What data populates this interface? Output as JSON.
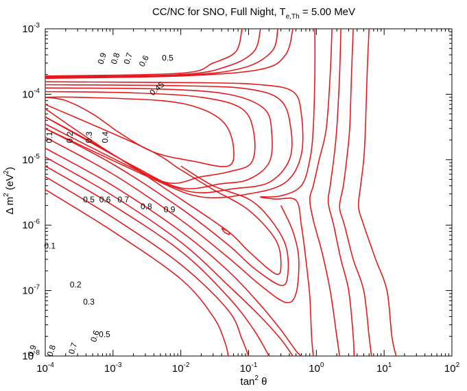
{
  "chart_data": {
    "type": "contour",
    "title_main": "CC/NC for SNO, Full Night, T",
    "title_sub": "e,Th",
    "title_value": " = 5.00 MeV",
    "xlabel_main": "tan",
    "xlabel_exp": "2",
    "xlabel_var": " θ",
    "ylabel_main": "Δ m",
    "ylabel_exp": "2",
    "ylabel_unit": " (eV",
    "ylabel_unit_exp": "2",
    "ylabel_close": ")",
    "x_scale": "log",
    "y_scale": "log",
    "xlim": [
      0.0001,
      100
    ],
    "ylim": [
      1e-08,
      0.001
    ],
    "x_ticks": [
      {
        "base": "10",
        "exp": "-4"
      },
      {
        "base": "10",
        "exp": "-3"
      },
      {
        "base": "10",
        "exp": "-2"
      },
      {
        "base": "10",
        "exp": "-1"
      },
      {
        "base": "10",
        "exp": "0"
      },
      {
        "base": "10",
        "exp": "1"
      },
      {
        "base": "10",
        "exp": "2"
      }
    ],
    "y_ticks": [
      {
        "base": "10",
        "exp": "-8"
      },
      {
        "base": "10",
        "exp": "-7"
      },
      {
        "base": "10",
        "exp": "-6"
      },
      {
        "base": "10",
        "exp": "-5"
      },
      {
        "base": "10",
        "exp": "-4"
      },
      {
        "base": "10",
        "exp": "-3"
      }
    ],
    "line_color": "#e3191c",
    "contour_levels": [
      0.1,
      0.2,
      0.3,
      0.4,
      0.45,
      0.5,
      0.6,
      0.7,
      0.8,
      0.9
    ],
    "contour_labels": [
      {
        "text": "0.9",
        "x": 0.0007,
        "y": 0.00035,
        "angle": -72
      },
      {
        "text": "0.8",
        "x": 0.0011,
        "y": 0.00035,
        "angle": -72
      },
      {
        "text": "0.7",
        "x": 0.0017,
        "y": 0.00035,
        "angle": -72
      },
      {
        "text": "0.6",
        "x": 0.0029,
        "y": 0.00032,
        "angle": -62
      },
      {
        "text": "0.5",
        "x": 0.0064,
        "y": 0.00035,
        "angle": 0
      },
      {
        "text": "0.45",
        "x": 0.0045,
        "y": 0.00012,
        "angle": -42
      },
      {
        "text": "0.1",
        "x": 0.000117,
        "y": 2.2e-05,
        "angle": -88
      },
      {
        "text": "0.2",
        "x": 0.000235,
        "y": 2.2e-05,
        "angle": -88
      },
      {
        "text": "0.3",
        "x": 0.00045,
        "y": 2.2e-05,
        "angle": -88
      },
      {
        "text": "0.4",
        "x": 0.00078,
        "y": 2.2e-05,
        "angle": -88
      },
      {
        "text": "0.5",
        "x": 0.00044,
        "y": 2.4e-06,
        "angle": 0
      },
      {
        "text": "0.6",
        "x": 0.00076,
        "y": 2.4e-06,
        "angle": 0
      },
      {
        "text": "0.7",
        "x": 0.00142,
        "y": 2.4e-06,
        "angle": 0
      },
      {
        "text": "0.8",
        "x": 0.0031,
        "y": 1.9e-06,
        "angle": 0
      },
      {
        "text": "0.9",
        "x": 0.0068,
        "y": 1.7e-06,
        "angle": 0
      },
      {
        "text": "0.1",
        "x": 0.000117,
        "y": 4.7e-07,
        "angle": 0
      },
      {
        "text": "0.2",
        "x": 0.00028,
        "y": 1.2e-07,
        "angle": 0
      },
      {
        "text": "0.3",
        "x": 0.00044,
        "y": 6.6e-08,
        "angle": 0
      },
      {
        "text": "0.5",
        "x": 0.00075,
        "y": 2.1e-08,
        "angle": 0
      },
      {
        "text": "0.6",
        "x": 0.00055,
        "y": 2e-08,
        "angle": -72
      },
      {
        "text": "0.7",
        "x": 0.00026,
        "y": 1.3e-08,
        "angle": -72
      },
      {
        "text": "0.8",
        "x": 0.000125,
        "y": 1.2e-08,
        "angle": -72
      },
      {
        "text": "0.9",
        "x": 6.5e-05,
        "y": 1.2e-08,
        "angle": -72
      }
    ],
    "contours": [
      {
        "level": 0.9,
        "points": [
          [
            0.08,
            0.001
          ],
          [
            0.065,
            0.00045
          ],
          [
            0.03,
            0.0003
          ],
          [
            0.01,
            0.00021
          ],
          [
            0.0001,
            0.00019
          ]
        ]
      },
      {
        "level": 0.8,
        "points": [
          [
            0.15,
            0.001
          ],
          [
            0.12,
            0.00045
          ],
          [
            0.05,
            0.00027
          ],
          [
            0.01,
            0.0002
          ],
          [
            0.0001,
            0.000185
          ]
        ]
      },
      {
        "level": 0.7,
        "points": [
          [
            0.27,
            0.001
          ],
          [
            0.22,
            0.00045
          ],
          [
            0.08,
            0.00025
          ],
          [
            0.01,
            0.000195
          ],
          [
            0.0001,
            0.00018
          ]
        ]
      },
      {
        "level": 0.6,
        "points": [
          [
            0.45,
            0.001
          ],
          [
            0.35,
            0.0004
          ],
          [
            0.15,
            0.00024
          ],
          [
            0.01,
            0.00019
          ],
          [
            0.0001,
            0.000175
          ]
        ]
      },
      {
        "level": 0.5,
        "points": [
          [
            0.95,
            0.001
          ],
          [
            0.95,
            0.0002
          ],
          [
            0.9,
            3e-05
          ],
          [
            0.8,
            1e-05
          ],
          [
            0.6,
            4e-06
          ],
          [
            0.3,
            2.8e-06
          ],
          [
            0.15,
            2.7e-06
          ],
          [
            0.25,
            2.5e-06
          ],
          [
            0.5,
            2.4e-06
          ],
          [
            0.6,
            1e-06
          ],
          [
            0.7,
            3e-07
          ],
          [
            0.8,
            8e-08
          ],
          [
            0.85,
            2e-08
          ],
          [
            0.9,
            1e-08
          ]
        ]
      },
      {
        "level": 0.6,
        "points": [
          [
            1.7,
            0.001
          ],
          [
            1.6,
            0.0002
          ],
          [
            1.4,
            3e-05
          ],
          [
            1.1,
            1e-05
          ],
          [
            0.9,
            4e-06
          ],
          [
            0.8,
            2.5e-06
          ],
          [
            0.9,
            1.2e-06
          ],
          [
            1.2,
            4e-07
          ],
          [
            1.6,
            1e-07
          ],
          [
            2.0,
            2e-08
          ],
          [
            2.2,
            1e-08
          ]
        ]
      },
      {
        "level": 0.7,
        "points": [
          [
            2.3,
            0.001
          ],
          [
            2.2,
            0.0002
          ],
          [
            2.0,
            3e-05
          ],
          [
            1.8,
            1e-05
          ],
          [
            1.6,
            4e-06
          ],
          [
            1.5,
            2.2e-06
          ],
          [
            1.8,
            1e-06
          ],
          [
            2.3,
            3e-07
          ],
          [
            3.0,
            1e-07
          ],
          [
            3.5,
            2e-08
          ],
          [
            3.6,
            1e-08
          ]
        ]
      },
      {
        "level": 0.8,
        "points": [
          [
            3.5,
            0.001
          ],
          [
            3.3,
            0.0002
          ],
          [
            3.1,
            3e-05
          ],
          [
            2.8,
            1e-05
          ],
          [
            2.5,
            4e-06
          ],
          [
            2.2,
            1.9e-06
          ],
          [
            2.6,
            1e-06
          ],
          [
            3.5,
            3e-07
          ],
          [
            5.0,
            1e-07
          ],
          [
            6.0,
            2e-08
          ],
          [
            6.5,
            1e-08
          ]
        ]
      },
      {
        "level": 0.9,
        "points": [
          [
            6.0,
            0.001
          ],
          [
            5.6,
            0.0002
          ],
          [
            5.3,
            3e-05
          ],
          [
            5.0,
            1e-05
          ],
          [
            4.5,
            4e-06
          ],
          [
            4.2,
            1.9e-06
          ],
          [
            5.0,
            1e-06
          ],
          [
            7.5,
            3e-07
          ],
          [
            11.0,
            1e-07
          ],
          [
            13.0,
            2e-08
          ],
          [
            15.0,
            1e-08
          ]
        ]
      },
      {
        "level": 0.1,
        "points": [
          [
            0.0001,
            9e-05
          ],
          [
            0.0003,
            9e-05
          ],
          [
            0.005,
            8e-05
          ],
          [
            0.02,
            6e-05
          ],
          [
            0.045,
            3.5e-05
          ],
          [
            0.06,
            1.5e-05
          ],
          [
            0.05,
            8e-06
          ],
          [
            0.015,
            9.5e-06
          ],
          [
            0.004,
            1.3e-05
          ],
          [
            0.0013,
            2.5e-05
          ],
          [
            0.0005,
            5e-05
          ],
          [
            0.0002,
            8e-05
          ],
          [
            0.0001,
            9e-05
          ]
        ]
      },
      {
        "level": 0.2,
        "points": [
          [
            0.0001,
            0.00011
          ],
          [
            0.002,
            0.000105
          ],
          [
            0.02,
            9e-05
          ],
          [
            0.08,
            6e-05
          ],
          [
            0.12,
            2.5e-05
          ],
          [
            0.11,
            9e-06
          ],
          [
            0.05,
            6.5e-06
          ],
          [
            0.02,
            5.5e-06
          ],
          [
            0.006,
            4.5e-06
          ],
          [
            0.001,
            1.2e-05
          ],
          [
            0.0001,
            6e-05
          ]
        ]
      },
      {
        "level": 0.3,
        "points": [
          [
            0.0001,
            0.000125
          ],
          [
            0.005,
            0.00012
          ],
          [
            0.05,
            0.0001
          ],
          [
            0.17,
            6e-05
          ],
          [
            0.22,
            2.5e-05
          ],
          [
            0.2,
            9e-06
          ],
          [
            0.1,
            5e-06
          ],
          [
            0.04,
            4.3e-06
          ],
          [
            0.01,
            3.7e-06
          ],
          [
            0.002,
            8e-06
          ],
          [
            0.0001,
            4.5e-05
          ]
        ]
      },
      {
        "level": 0.4,
        "points": [
          [
            0.0001,
            0.00014
          ],
          [
            0.01,
            0.000135
          ],
          [
            0.1,
            0.00012
          ],
          [
            0.3,
            8e-05
          ],
          [
            0.42,
            3e-05
          ],
          [
            0.4,
            1e-05
          ],
          [
            0.2,
            4.5e-06
          ],
          [
            0.06,
            3.6e-06
          ],
          [
            0.015,
            3.2e-06
          ],
          [
            0.003,
            6e-06
          ],
          [
            0.0001,
            3.5e-05
          ]
        ]
      },
      {
        "level": 0.45,
        "points": [
          [
            0.0001,
            0.000155
          ],
          [
            0.02,
            0.00015
          ],
          [
            0.15,
            0.00014
          ],
          [
            0.45,
            0.00011
          ],
          [
            0.6,
            5e-05
          ],
          [
            0.6,
            1.2e-05
          ],
          [
            0.35,
            4.5e-06
          ],
          [
            0.1,
            3e-06
          ],
          [
            0.02,
            2.7e-06
          ],
          [
            0.004,
            5e-06
          ],
          [
            0.0001,
            3e-05
          ]
        ]
      },
      {
        "level": 0.1,
        "points": [
          [
            0.04,
            9e-07
          ],
          [
            0.05,
            8e-07
          ],
          [
            0.052,
            7.2e-07
          ],
          [
            0.044,
            7.8e-07
          ],
          [
            0.04,
            9e-07
          ]
        ]
      },
      {
        "level": 0.1,
        "points": [
          [
            0.0001,
            4.5e-05
          ],
          [
            0.001,
            1.2e-05
          ],
          [
            0.01,
            2.5e-06
          ],
          [
            0.05,
            8e-07
          ],
          [
            0.1,
            4e-07
          ],
          [
            0.25,
            1.8e-07
          ],
          [
            0.3,
            2.5e-07
          ],
          [
            0.25,
            6e-07
          ],
          [
            0.1,
            1.7e-06
          ],
          [
            0.03,
            3.5e-06
          ],
          [
            0.01,
            7e-06
          ],
          [
            0.003,
            1.5e-05
          ],
          [
            0.0001,
            7e-05
          ]
        ]
      },
      {
        "level": 0.2,
        "points": [
          [
            0.0001,
            3e-05
          ],
          [
            0.001,
            8.5e-06
          ],
          [
            0.01,
            1.8e-06
          ],
          [
            0.05,
            5e-07
          ],
          [
            0.12,
            2.2e-07
          ],
          [
            0.3,
            1.2e-07
          ],
          [
            0.38,
            1.8e-07
          ],
          [
            0.35,
            5e-07
          ],
          [
            0.2,
            1.3e-06
          ],
          [
            0.1,
            2.5e-06
          ],
          [
            0.03,
            4e-06
          ],
          [
            0.01,
            8e-06
          ]
        ]
      },
      {
        "level": 0.3,
        "points": [
          [
            0.0001,
            2.2e-05
          ],
          [
            0.001,
            6e-06
          ],
          [
            0.01,
            1.2e-06
          ],
          [
            0.05,
            3.2e-07
          ],
          [
            0.15,
            1.2e-07
          ],
          [
            0.35,
            6.6e-08
          ],
          [
            0.5,
            9e-08
          ],
          [
            0.55,
            3e-07
          ],
          [
            0.45,
            8e-07
          ],
          [
            0.3,
            2e-06
          ]
        ]
      },
      {
        "level": 0.5,
        "points": [
          [
            0.0001,
            1.5e-05
          ],
          [
            0.001,
            4e-06
          ],
          [
            0.01,
            8e-07
          ],
          [
            0.05,
            2e-07
          ],
          [
            0.15,
            6e-08
          ],
          [
            0.3,
            2.5e-08
          ],
          [
            0.5,
            1.2e-08
          ],
          [
            0.6,
            1e-08
          ]
        ]
      },
      {
        "level": 0.6,
        "points": [
          [
            0.0001,
            1.1e-05
          ],
          [
            0.001,
            2.8e-06
          ],
          [
            0.01,
            5.5e-07
          ],
          [
            0.05,
            1.2e-07
          ],
          [
            0.15,
            4e-08
          ],
          [
            0.3,
            1.8e-08
          ],
          [
            0.45,
            1e-08
          ]
        ]
      },
      {
        "level": 0.7,
        "points": [
          [
            0.0001,
            8e-06
          ],
          [
            0.001,
            2e-06
          ],
          [
            0.01,
            4e-07
          ],
          [
            0.05,
            8e-08
          ],
          [
            0.12,
            2.5e-08
          ],
          [
            0.2,
            1e-08
          ]
        ]
      },
      {
        "level": 0.8,
        "points": [
          [
            0.0001,
            5.5e-06
          ],
          [
            0.001,
            1.3e-06
          ],
          [
            0.01,
            2.5e-07
          ],
          [
            0.05,
            5e-08
          ],
          [
            0.08,
            1.8e-08
          ],
          [
            0.1,
            1e-08
          ]
        ]
      },
      {
        "level": 0.9,
        "points": [
          [
            0.0001,
            3.5e-06
          ],
          [
            0.001,
            8e-07
          ],
          [
            0.01,
            1.5e-07
          ],
          [
            0.03,
            4e-08
          ],
          [
            0.045,
            1.6e-08
          ],
          [
            0.05,
            1e-08
          ]
        ]
      }
    ]
  }
}
